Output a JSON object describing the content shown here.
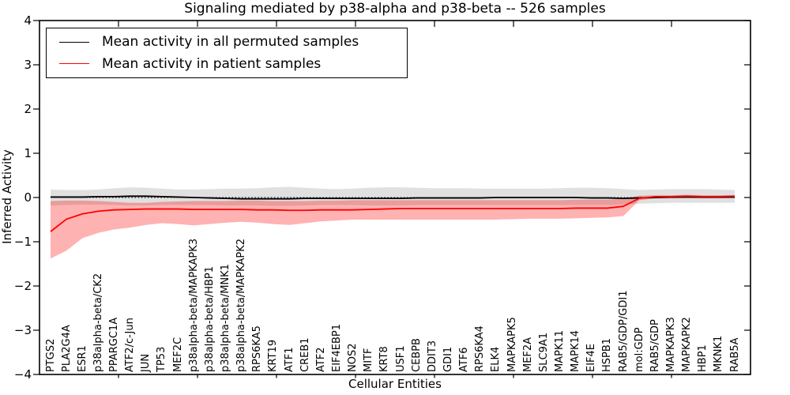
{
  "title": "Signaling mediated by p38-alpha and p38-beta -- 526 samples",
  "legend": {
    "entries": [
      {
        "label": "Mean activity in all permuted samples",
        "color": "#000000"
      },
      {
        "label": "Mean activity in patient samples",
        "color": "#ff0000"
      }
    ]
  },
  "chart_data": {
    "type": "line",
    "title": "Signaling mediated by p38-alpha and p38-beta -- 526 samples",
    "xlabel": "Cellular Entities",
    "ylabel": "Inferred Activity",
    "ylim": [
      -4,
      4
    ],
    "grid": false,
    "legend_position": "upper left",
    "yticks": [
      4,
      3,
      2,
      1,
      0,
      -1,
      -2,
      -3,
      -4
    ],
    "ytick_labels": [
      "4",
      "3",
      "2",
      "1",
      "0",
      "−1",
      "−2",
      "−3",
      "−4"
    ],
    "zero_line": {
      "value": 0,
      "style": "dotted",
      "color": "#000000"
    },
    "categories": [
      "PTGS2",
      "PLA2G4A",
      "ESR1",
      "p38alpha-beta/CK2",
      "PPARGC1A",
      "ATF2/c-Jun",
      "JUN",
      "TP53",
      "MEF2C",
      "p38alpha-beta/MAPKAPK3",
      "p38alpha-beta/HBP1",
      "p38alpha-beta/MNK1",
      "p38alpha-beta/MAPKAPK2",
      "RPS6KA5",
      "KRT19",
      "ATF1",
      "CREB1",
      "ATF2",
      "EIF4EBP1",
      "NOS2",
      "MITF",
      "KRT8",
      "USF1",
      "CEBPB",
      "DDIT3",
      "GDI1",
      "ATF6",
      "RPS6KA4",
      "ELK4",
      "MAPKAPK5",
      "MEF2A",
      "SLC9A1",
      "MAPK11",
      "MAPK14",
      "EIF4E",
      "HSPB1",
      "RAB5/GDP/GDI1",
      "mol:GDP",
      "RAB5/GDP",
      "MAPKAPK3",
      "MAPKAPK2",
      "HBP1",
      "MKNK1",
      "RAB5A"
    ],
    "series": [
      {
        "key": "permuted",
        "name": "Mean activity in all permuted samples",
        "color": "#000000",
        "line_width": 1.8,
        "band_color": "rgba(0,0,0,0.12)",
        "values": [
          0.01,
          0.01,
          0.01,
          0.02,
          0.02,
          0.03,
          0.03,
          0.02,
          0.01,
          0.0,
          -0.01,
          -0.02,
          -0.03,
          -0.03,
          -0.03,
          -0.03,
          -0.02,
          -0.02,
          -0.02,
          -0.02,
          -0.02,
          -0.02,
          -0.02,
          -0.01,
          -0.01,
          -0.01,
          -0.01,
          -0.01,
          0.0,
          0.0,
          0.0,
          0.0,
          0.0,
          0.0,
          -0.01,
          -0.01,
          -0.02,
          -0.01,
          0.0,
          0.01,
          0.01,
          0.01,
          0.01,
          0.01
        ],
        "band_upper": [
          0.18,
          0.17,
          0.17,
          0.18,
          0.21,
          0.23,
          0.22,
          0.2,
          0.18,
          0.18,
          0.19,
          0.2,
          0.2,
          0.21,
          0.23,
          0.24,
          0.22,
          0.2,
          0.19,
          0.2,
          0.22,
          0.23,
          0.23,
          0.22,
          0.21,
          0.21,
          0.21,
          0.2,
          0.2,
          0.2,
          0.2,
          0.2,
          0.21,
          0.22,
          0.22,
          0.21,
          0.19,
          0.17,
          0.18,
          0.19,
          0.19,
          0.19,
          0.18,
          0.17
        ],
        "band_lower": [
          -0.18,
          -0.17,
          -0.16,
          -0.16,
          -0.17,
          -0.18,
          -0.18,
          -0.17,
          -0.17,
          -0.17,
          -0.17,
          -0.18,
          -0.18,
          -0.18,
          -0.19,
          -0.19,
          -0.18,
          -0.17,
          -0.17,
          -0.17,
          -0.18,
          -0.18,
          -0.18,
          -0.17,
          -0.17,
          -0.17,
          -0.17,
          -0.17,
          -0.17,
          -0.17,
          -0.17,
          -0.17,
          -0.17,
          -0.17,
          -0.17,
          -0.17,
          -0.16,
          -0.14,
          -0.13,
          -0.12,
          -0.12,
          -0.12,
          -0.12,
          -0.12
        ]
      },
      {
        "key": "patient",
        "name": "Mean activity in patient samples",
        "color": "#ff0000",
        "line_width": 1.8,
        "band_color": "rgba(255,0,0,0.30)",
        "values": [
          -0.77,
          -0.49,
          -0.37,
          -0.31,
          -0.28,
          -0.27,
          -0.26,
          -0.26,
          -0.26,
          -0.27,
          -0.27,
          -0.27,
          -0.27,
          -0.28,
          -0.28,
          -0.29,
          -0.29,
          -0.28,
          -0.28,
          -0.28,
          -0.27,
          -0.26,
          -0.25,
          -0.25,
          -0.25,
          -0.25,
          -0.25,
          -0.25,
          -0.25,
          -0.25,
          -0.25,
          -0.25,
          -0.25,
          -0.24,
          -0.24,
          -0.24,
          -0.2,
          -0.02,
          0.02,
          0.02,
          0.03,
          0.02,
          0.02,
          0.03
        ],
        "band_upper": [
          -0.08,
          -0.07,
          -0.07,
          -0.08,
          -0.1,
          -0.12,
          -0.12,
          -0.1,
          -0.09,
          -0.08,
          -0.08,
          -0.08,
          -0.07,
          -0.07,
          -0.08,
          -0.08,
          -0.08,
          -0.07,
          -0.07,
          -0.06,
          -0.06,
          -0.06,
          -0.06,
          -0.06,
          -0.06,
          -0.06,
          -0.06,
          -0.06,
          -0.06,
          -0.06,
          -0.06,
          -0.06,
          -0.06,
          -0.05,
          -0.05,
          -0.05,
          -0.03,
          0.04,
          0.05,
          0.05,
          0.06,
          0.05,
          0.05,
          0.05
        ],
        "band_lower": [
          -1.38,
          -1.2,
          -0.92,
          -0.8,
          -0.72,
          -0.68,
          -0.62,
          -0.58,
          -0.6,
          -0.63,
          -0.6,
          -0.57,
          -0.55,
          -0.57,
          -0.6,
          -0.62,
          -0.58,
          -0.54,
          -0.52,
          -0.5,
          -0.5,
          -0.5,
          -0.5,
          -0.5,
          -0.5,
          -0.5,
          -0.5,
          -0.5,
          -0.5,
          -0.49,
          -0.48,
          -0.48,
          -0.48,
          -0.47,
          -0.46,
          -0.45,
          -0.42,
          -0.06,
          -0.02,
          -0.02,
          -0.01,
          -0.02,
          -0.02,
          -0.01
        ]
      }
    ]
  }
}
